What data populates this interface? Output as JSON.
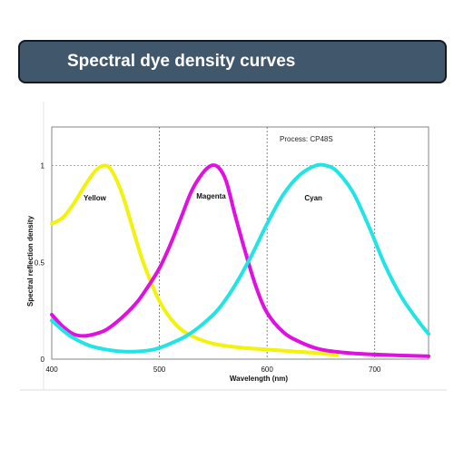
{
  "header": {
    "title": "Spectral dye density curves"
  },
  "chart_data": {
    "type": "line",
    "xlabel": "Wavelength (nm)",
    "ylabel": "Spectral reflection density",
    "annotation": "Process: CP48S",
    "xlim": [
      400,
      750
    ],
    "ylim": [
      0,
      1.2
    ],
    "x_ticks": [
      400,
      500,
      600,
      700
    ],
    "y_ticks": [
      {
        "value": 0,
        "label": "0"
      },
      {
        "value": 0.5,
        "label": "0.5"
      },
      {
        "value": 1,
        "label": "1"
      }
    ],
    "grid": "dotted vertical at 500, 600, 700; dotted horizontal at 1",
    "series": [
      {
        "name": "Yellow",
        "color": "#f2f20a",
        "label_at": [
          440,
          0.82
        ],
        "points": [
          [
            400,
            0.7
          ],
          [
            410,
            0.73
          ],
          [
            420,
            0.8
          ],
          [
            430,
            0.89
          ],
          [
            440,
            0.97
          ],
          [
            448,
            1.0
          ],
          [
            455,
            0.98
          ],
          [
            465,
            0.86
          ],
          [
            475,
            0.68
          ],
          [
            485,
            0.5
          ],
          [
            500,
            0.3
          ],
          [
            515,
            0.18
          ],
          [
            530,
            0.12
          ],
          [
            550,
            0.08
          ],
          [
            575,
            0.06
          ],
          [
            600,
            0.05
          ],
          [
            625,
            0.04
          ],
          [
            650,
            0.03
          ],
          [
            665,
            0.02
          ]
        ]
      },
      {
        "name": "Magenta",
        "color": "#e010e0",
        "label_at": [
          548,
          0.83
        ],
        "points": [
          [
            400,
            0.23
          ],
          [
            410,
            0.17
          ],
          [
            420,
            0.13
          ],
          [
            430,
            0.12
          ],
          [
            440,
            0.13
          ],
          [
            450,
            0.15
          ],
          [
            460,
            0.19
          ],
          [
            470,
            0.24
          ],
          [
            480,
            0.3
          ],
          [
            490,
            0.38
          ],
          [
            500,
            0.47
          ],
          [
            510,
            0.59
          ],
          [
            520,
            0.73
          ],
          [
            530,
            0.87
          ],
          [
            540,
            0.96
          ],
          [
            548,
            1.0
          ],
          [
            555,
            0.99
          ],
          [
            562,
            0.92
          ],
          [
            570,
            0.75
          ],
          [
            580,
            0.55
          ],
          [
            590,
            0.37
          ],
          [
            600,
            0.24
          ],
          [
            615,
            0.14
          ],
          [
            630,
            0.09
          ],
          [
            650,
            0.05
          ],
          [
            680,
            0.03
          ],
          [
            720,
            0.02
          ],
          [
            750,
            0.015
          ]
        ]
      },
      {
        "name": "Cyan",
        "color": "#22e4e4",
        "label_at": [
          643,
          0.82
        ],
        "points": [
          [
            400,
            0.2
          ],
          [
            410,
            0.15
          ],
          [
            420,
            0.11
          ],
          [
            435,
            0.07
          ],
          [
            450,
            0.05
          ],
          [
            465,
            0.04
          ],
          [
            480,
            0.04
          ],
          [
            495,
            0.05
          ],
          [
            510,
            0.08
          ],
          [
            525,
            0.12
          ],
          [
            540,
            0.18
          ],
          [
            555,
            0.26
          ],
          [
            570,
            0.38
          ],
          [
            585,
            0.53
          ],
          [
            600,
            0.7
          ],
          [
            615,
            0.85
          ],
          [
            630,
            0.95
          ],
          [
            645,
            1.0
          ],
          [
            655,
            1.0
          ],
          [
            665,
            0.97
          ],
          [
            680,
            0.86
          ],
          [
            695,
            0.68
          ],
          [
            710,
            0.48
          ],
          [
            725,
            0.32
          ],
          [
            740,
            0.2
          ],
          [
            750,
            0.13
          ]
        ]
      }
    ]
  }
}
